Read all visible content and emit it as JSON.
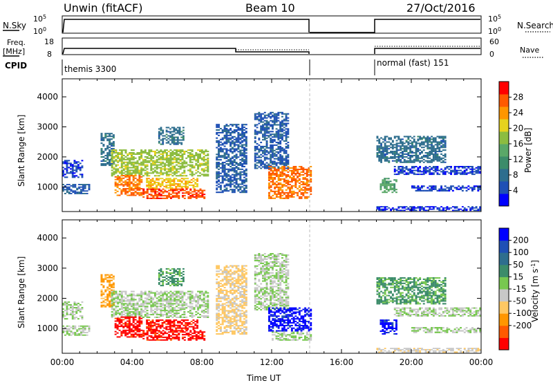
{
  "header": {
    "station": "Unwin (fitACF)",
    "beam": "Beam 10",
    "date": "27/Oct/2016"
  },
  "sky_panel": {
    "left_label": "N.Sky",
    "left_ticks": [
      "10^5",
      "10^0"
    ],
    "right_label": "N.Search",
    "right_ticks": [
      "10^5",
      "10^0"
    ]
  },
  "freq_panel": {
    "left_label_1": "Freq.",
    "left_label_2": "[MHz]",
    "left_ticks": [
      "18",
      "8"
    ],
    "right_label": "Nave",
    "right_ticks": [
      "60",
      "0"
    ]
  },
  "cpid_panel": {
    "label": "CPID",
    "mode_1": "themis 3300",
    "mode_2": "normal (fast) 151"
  },
  "chart_data": [
    {
      "type": "heatmap",
      "title": "",
      "ylabel": "Slant Range [km]",
      "xlabel": "",
      "xlim": [
        0,
        24
      ],
      "ylim": [
        180,
        4600
      ],
      "yticks": [
        "1000",
        "2000",
        "3000",
        "4000"
      ],
      "colorbar": {
        "label": "Power [dB]",
        "range": [
          0,
          32
        ],
        "ticks": [
          "4",
          "8",
          "12",
          "16",
          "20",
          "24",
          "28"
        ],
        "colors": [
          "#0000ff",
          "#1f50b5",
          "#2e6e8e",
          "#3c8c6a",
          "#5aa868",
          "#8cbc40",
          "#e6d21e",
          "#ff9600",
          "#ff5a00",
          "#ff0000"
        ]
      },
      "regions": [
        {
          "t0": 0.0,
          "t1": 1.6,
          "r0": 760,
          "r1": 1100,
          "level": 6
        },
        {
          "t0": 0.0,
          "t1": 1.2,
          "r0": 1300,
          "r1": 1900,
          "level": 4
        },
        {
          "t0": 2.2,
          "t1": 3.0,
          "r0": 1700,
          "r1": 2800,
          "level": 8
        },
        {
          "t0": 2.8,
          "t1": 8.4,
          "r0": 1350,
          "r1": 2250,
          "level": 18
        },
        {
          "t0": 3.0,
          "t1": 4.6,
          "r0": 700,
          "r1": 1400,
          "level": 26
        },
        {
          "t0": 4.6,
          "t1": 8.2,
          "r0": 600,
          "r1": 950,
          "level": 28
        },
        {
          "t0": 4.8,
          "t1": 7.8,
          "r0": 950,
          "r1": 1300,
          "level": 22
        },
        {
          "t0": 5.5,
          "t1": 7.0,
          "r0": 2400,
          "r1": 3000,
          "level": 8
        },
        {
          "t0": 8.8,
          "t1": 10.6,
          "r0": 800,
          "r1": 3100,
          "level": 6
        },
        {
          "t0": 11.0,
          "t1": 13.0,
          "r0": 1600,
          "r1": 3500,
          "level": 6
        },
        {
          "t0": 11.8,
          "t1": 14.3,
          "r0": 600,
          "r1": 1700,
          "level": 26
        },
        {
          "t0": 18.2,
          "t1": 19.2,
          "r0": 800,
          "r1": 1300,
          "level": 14
        },
        {
          "t0": 18.0,
          "t1": 24.0,
          "r0": 200,
          "r1": 360,
          "level": 3
        },
        {
          "t0": 19.0,
          "t1": 24.0,
          "r0": 1400,
          "r1": 1700,
          "level": 4
        },
        {
          "t0": 20.0,
          "t1": 24.0,
          "r0": 850,
          "r1": 1050,
          "level": 4
        },
        {
          "t0": 18.0,
          "t1": 22.0,
          "r0": 1800,
          "r1": 2700,
          "level": 8
        }
      ]
    },
    {
      "type": "heatmap",
      "title": "",
      "ylabel": "Slant Range [km]",
      "xlabel": "Time UT",
      "xlim": [
        0,
        24
      ],
      "ylim": [
        180,
        4600
      ],
      "xticks": [
        "00:00",
        "04:00",
        "08:00",
        "12:00",
        "16:00",
        "20:00",
        "00:00"
      ],
      "yticks": [
        "1000",
        "2000",
        "3000",
        "4000"
      ],
      "colorbar": {
        "label": "Velocity [m s^-1]",
        "range": [
          -250,
          250
        ],
        "ticks": [
          "200",
          "100",
          "50",
          "15",
          "-15",
          "-50",
          "-100",
          "-200"
        ],
        "colors": [
          "#ff0000",
          "#ff5a00",
          "#ff9600",
          "#ffc864",
          "#c8c8c8",
          "#78c850",
          "#3c8c6a",
          "#2e6e8e",
          "#1f50b5",
          "#0000ff"
        ]
      },
      "regions": [
        {
          "t0": 0.0,
          "t1": 1.6,
          "r0": 760,
          "r1": 1100,
          "level": 0
        },
        {
          "t0": 0.0,
          "t1": 1.2,
          "r0": 1300,
          "r1": 1900,
          "level": 0
        },
        {
          "t0": 2.2,
          "t1": 3.0,
          "r0": 1700,
          "r1": 2800,
          "level": -120
        },
        {
          "t0": 2.8,
          "t1": 8.4,
          "r0": 1350,
          "r1": 2250,
          "level": 0
        },
        {
          "t0": 3.0,
          "t1": 4.6,
          "r0": 700,
          "r1": 1400,
          "level": -220
        },
        {
          "t0": 4.6,
          "t1": 8.2,
          "r0": 600,
          "r1": 950,
          "level": -220
        },
        {
          "t0": 4.8,
          "t1": 7.8,
          "r0": 950,
          "r1": 1300,
          "level": -220
        },
        {
          "t0": 5.5,
          "t1": 7.0,
          "r0": 2400,
          "r1": 3000,
          "level": 60
        },
        {
          "t0": 8.8,
          "t1": 10.6,
          "r0": 800,
          "r1": 3100,
          "level": -60
        },
        {
          "t0": 11.0,
          "t1": 13.0,
          "r0": 1600,
          "r1": 3500,
          "level": 0
        },
        {
          "t0": 11.8,
          "t1": 14.3,
          "r0": 900,
          "r1": 1700,
          "level": 220
        },
        {
          "t0": 12.0,
          "t1": 14.3,
          "r0": 600,
          "r1": 900,
          "level": 0
        },
        {
          "t0": 18.2,
          "t1": 19.2,
          "r0": 800,
          "r1": 1300,
          "level": 220
        },
        {
          "t0": 18.0,
          "t1": 24.0,
          "r0": 200,
          "r1": 360,
          "level": -40
        },
        {
          "t0": 19.0,
          "t1": 24.0,
          "r0": 1400,
          "r1": 1700,
          "level": 0
        },
        {
          "t0": 20.0,
          "t1": 24.0,
          "r0": 850,
          "r1": 1050,
          "level": 0
        },
        {
          "t0": 18.0,
          "t1": 22.0,
          "r0": 1800,
          "r1": 2700,
          "level": 60
        }
      ]
    }
  ]
}
